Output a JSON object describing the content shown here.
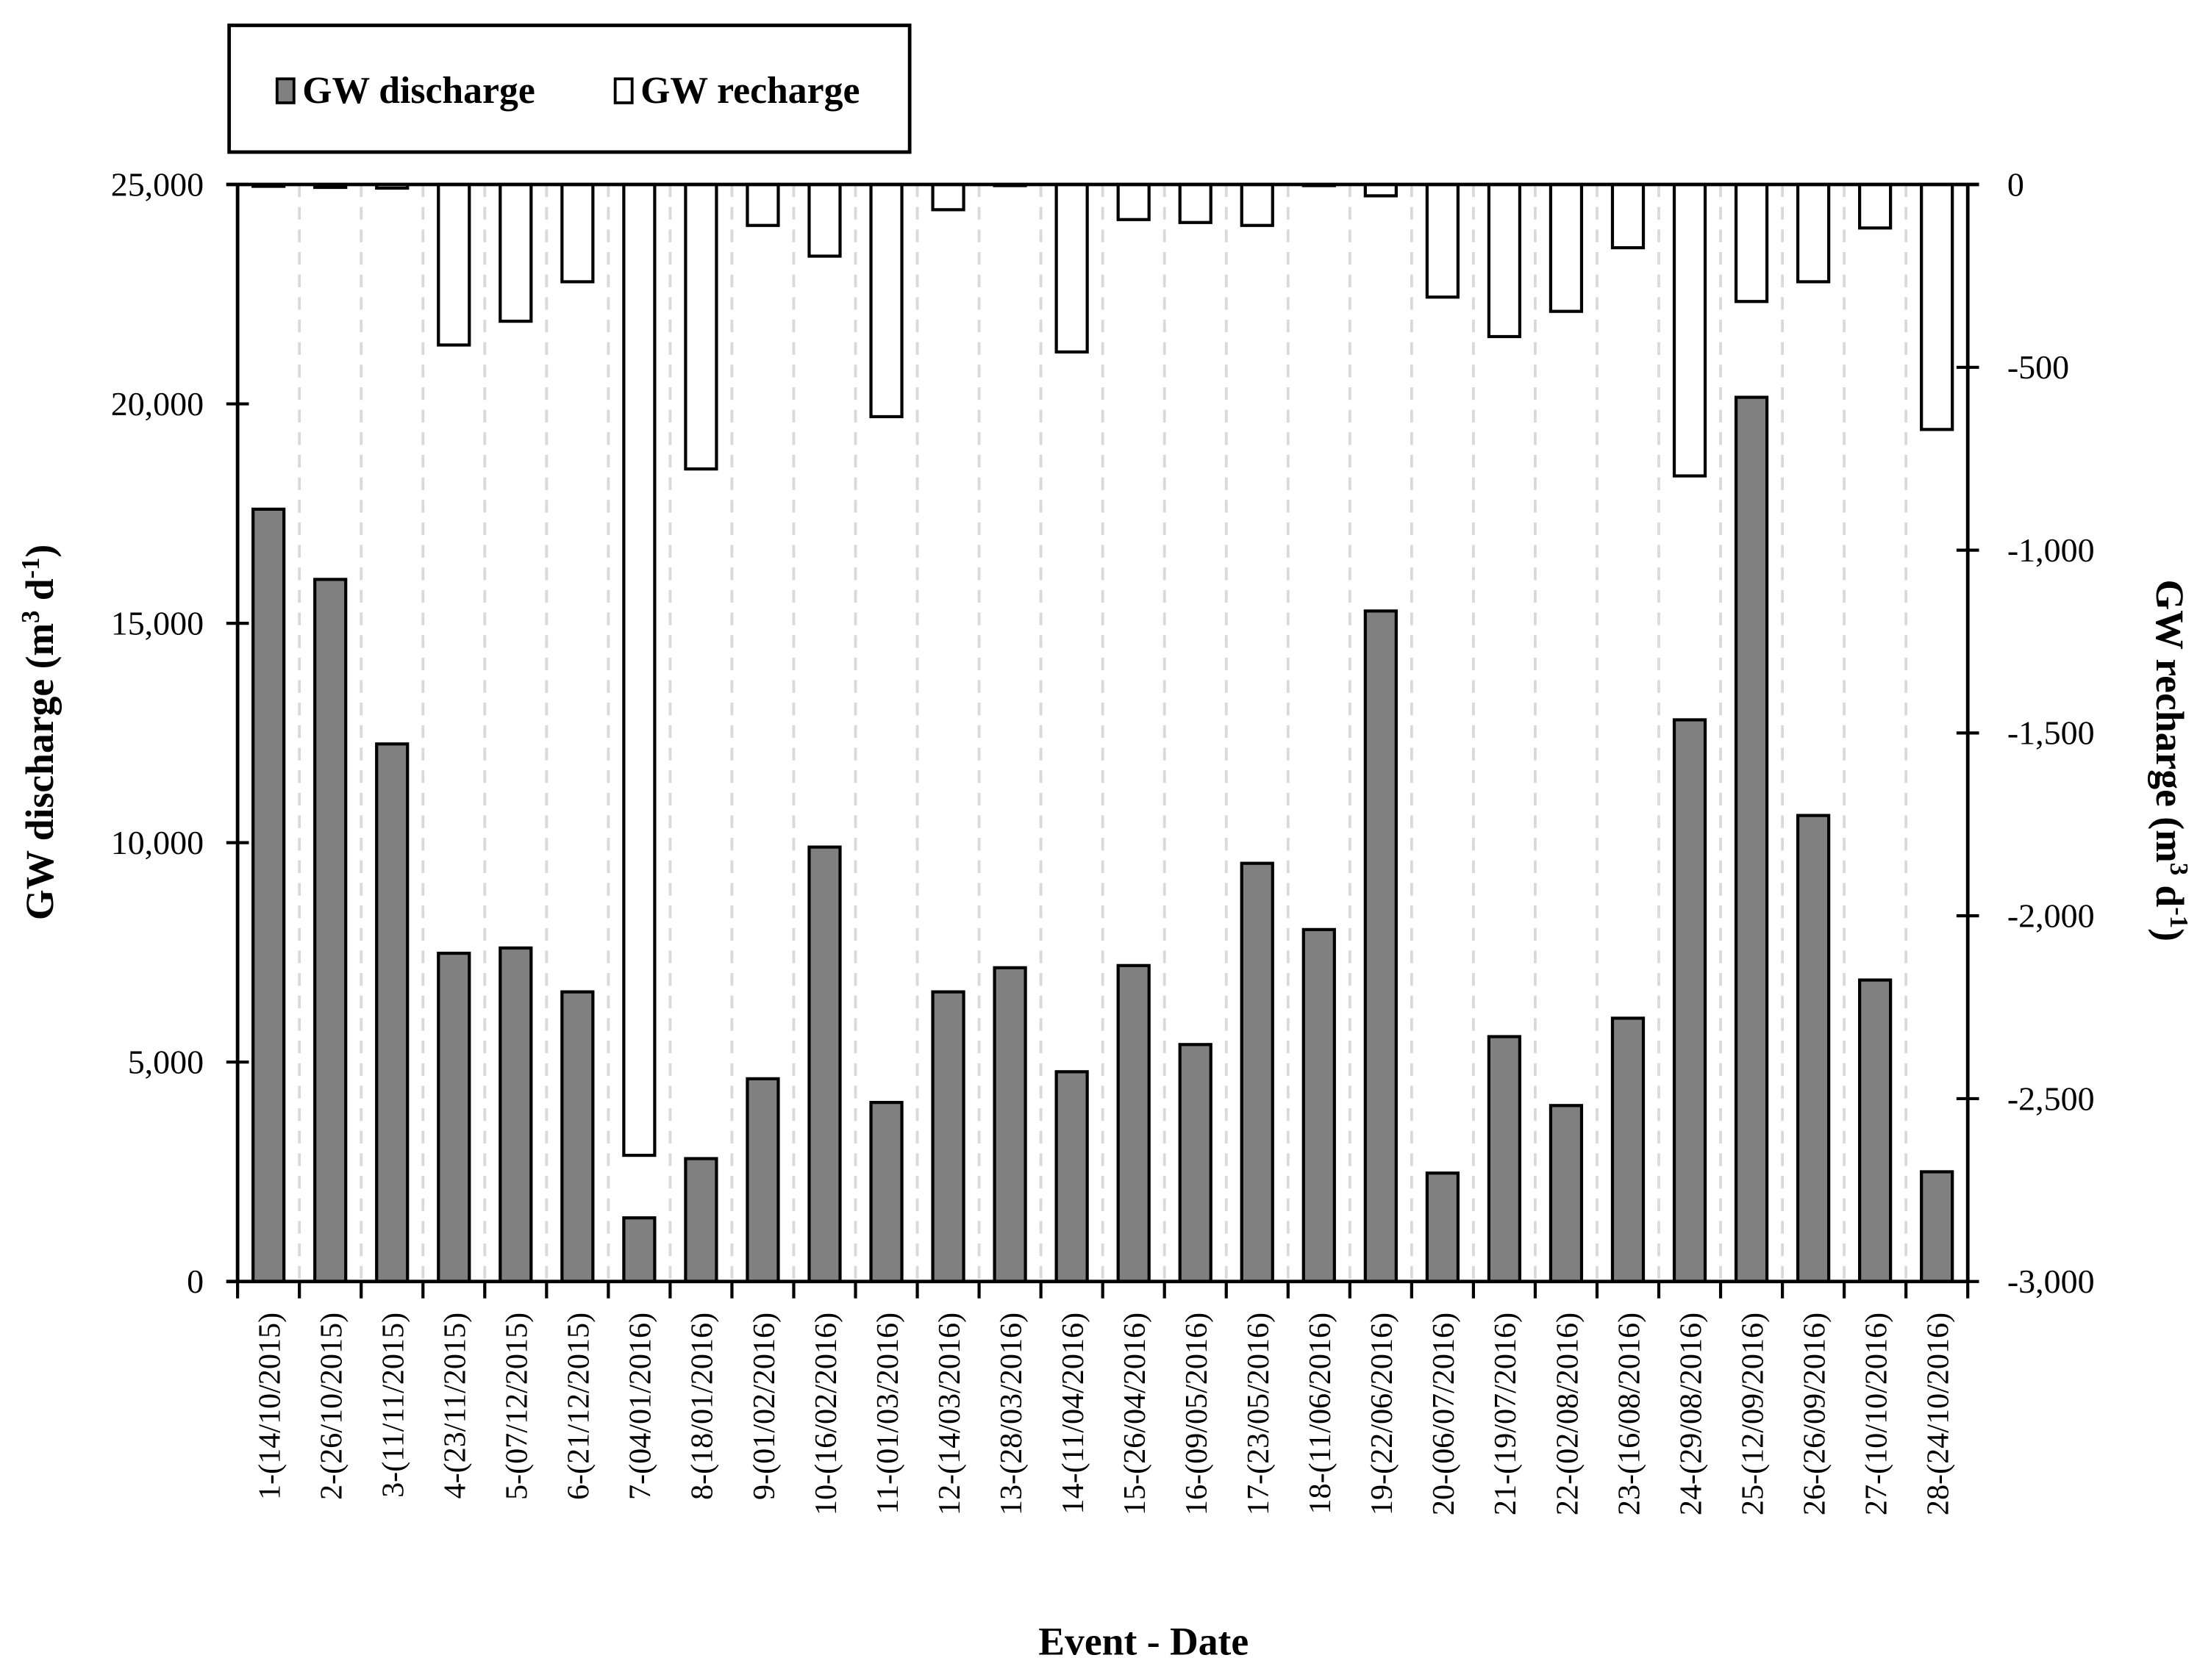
{
  "chart_data": {
    "type": "bar",
    "title": "",
    "xlabel": "Event - Date",
    "ylabel": "GW discharge (m3 d-1)",
    "ylabel_right": "GW recharge (m3 d-1)",
    "ylim": [
      0,
      25000
    ],
    "ylim_right": [
      -3000,
      0
    ],
    "yticks": [
      "0",
      "5,000",
      "10,000",
      "15,000",
      "20,000",
      "25,000"
    ],
    "yticks_right": [
      "0",
      "-500",
      "-1,000",
      "-1,500",
      "-2,000",
      "-2,500",
      "-3,000"
    ],
    "grid": "vertical dashed between categories",
    "legend_position": "top-left",
    "categories": [
      "1-(14/10/2015)",
      "2-(26/10/2015)",
      "3-(11/11/2015)",
      "4-(23/11/2015)",
      "5-(07/12/2015)",
      "6-(21/12/2015)",
      "7-(04/01/2016)",
      "8-(18/01/2016)",
      "9-(01/02/2016)",
      "10-(16/02/2016)",
      "11-(01/03/2016)",
      "12-(14/03/2016)",
      "13-(28/03/2016)",
      "14-(11/04/2016)",
      "15-(26/04/2016)",
      "16-(09/05/2016)",
      "17-(23/05/2016)",
      "18-(11/06/2016)",
      "19-(22/06/2016)",
      "20-(06/07/2016)",
      "21-(19/07/2016)",
      "22-(02/08/2016)",
      "23-(16/08/2016)",
      "24-(29/08/2016)",
      "25-(12/09/2016)",
      "26-(26/09/2016)",
      "27-(10/10/2016)",
      "28-(24/10/2016)"
    ],
    "series": [
      {
        "name": "GW discharge",
        "axis": "left",
        "color": "#808080",
        "values": [
          17600,
          16000,
          12250,
          7480,
          7600,
          6600,
          1450,
          2800,
          4620,
          9900,
          4080,
          6600,
          7150,
          4780,
          7200,
          5400,
          9530,
          8020,
          15280,
          2470,
          5580,
          4010,
          6000,
          12800,
          20150,
          10620,
          6870,
          2500
        ]
      },
      {
        "name": "GW recharge",
        "axis": "right",
        "color": "#ffffff",
        "values": [
          -5,
          -8,
          -10,
          -439,
          -374,
          -266,
          -2655,
          -778,
          -112,
          -196,
          -635,
          -69,
          -2,
          -458,
          -96,
          -104,
          -112,
          -2,
          -31,
          -308,
          -416,
          -347,
          -173,
          -797,
          -320,
          -266,
          -119,
          -670
        ]
      }
    ]
  },
  "legend": {
    "discharge_label": "GW discharge",
    "recharge_label": "GW recharge"
  },
  "axes": {
    "x_title": "Event - Date",
    "y_left_title_main": "GW discharge (m",
    "y_left_title_sup1": "3",
    "y_left_title_mid": " d",
    "y_left_title_sup2": "-1",
    "y_left_title_end": ")",
    "y_right_title_main": "GW recharge (m",
    "y_right_title_sup1": "3",
    "y_right_title_mid": " d",
    "y_right_title_sup2": "-1",
    "y_right_title_end": ")"
  }
}
